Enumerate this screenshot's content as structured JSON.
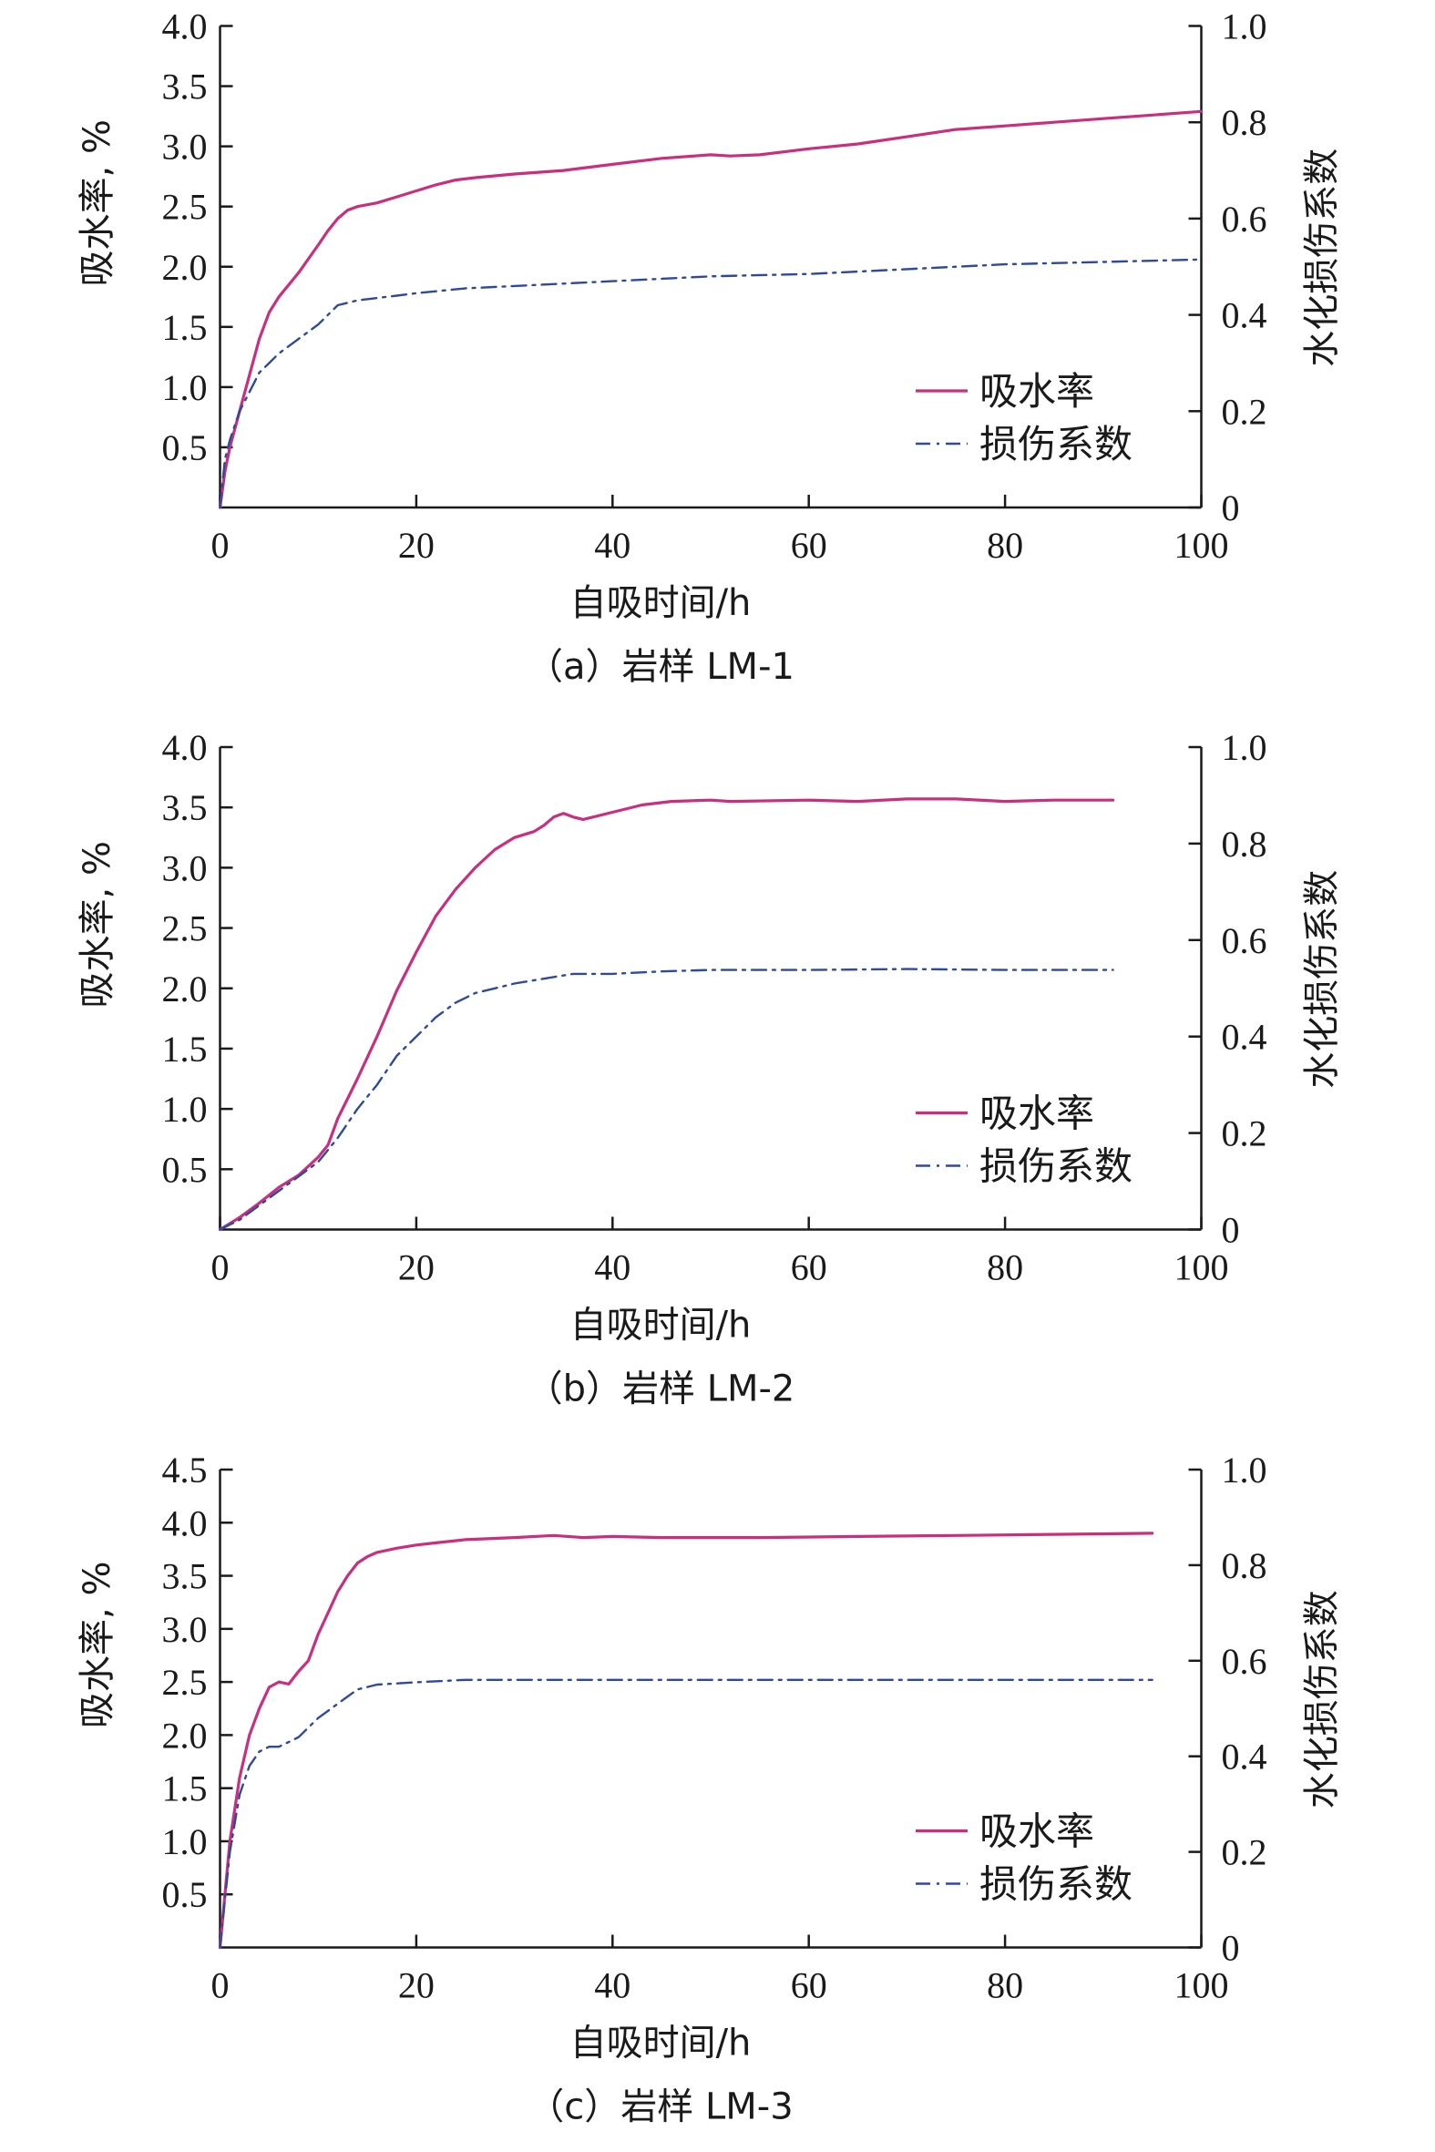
{
  "chart_data": [
    {
      "type": "line",
      "caption": "（a）岩样 LM-1",
      "xlabel": "自吸时间/h",
      "ylabel": "吸水率, %",
      "y2label": "水化损伤系数",
      "xlim": [
        0,
        100
      ],
      "ylim": [
        0,
        4.0
      ],
      "y2lim": [
        0,
        1.0
      ],
      "xticks": [
        "0",
        "20",
        "40",
        "60",
        "80",
        "100"
      ],
      "yticks": [
        "0.5",
        "1.0",
        "1.5",
        "2.0",
        "2.5",
        "3.0",
        "3.5",
        "4.0"
      ],
      "y2ticks": [
        "0",
        "0.2",
        "0.4",
        "0.6",
        "0.8",
        "1.0"
      ],
      "legend_position": "bottom-right",
      "series": [
        {
          "name": "吸水率",
          "axis": "left",
          "color": "#c8307f",
          "style": "solid",
          "points": [
            [
              0,
              0
            ],
            [
              0.5,
              0.3
            ],
            [
              1,
              0.5
            ],
            [
              2,
              0.8
            ],
            [
              3,
              1.1
            ],
            [
              4,
              1.4
            ],
            [
              5,
              1.62
            ],
            [
              6,
              1.75
            ],
            [
              8,
              1.95
            ],
            [
              10,
              2.18
            ],
            [
              11,
              2.3
            ],
            [
              12,
              2.4
            ],
            [
              13,
              2.47
            ],
            [
              14,
              2.5
            ],
            [
              16,
              2.53
            ],
            [
              18,
              2.58
            ],
            [
              20,
              2.63
            ],
            [
              22,
              2.68
            ],
            [
              24,
              2.72
            ],
            [
              26,
              2.74
            ],
            [
              30,
              2.77
            ],
            [
              35,
              2.8
            ],
            [
              40,
              2.85
            ],
            [
              45,
              2.9
            ],
            [
              50,
              2.93
            ],
            [
              52,
              2.92
            ],
            [
              55,
              2.93
            ],
            [
              60,
              2.98
            ],
            [
              65,
              3.02
            ],
            [
              70,
              3.08
            ],
            [
              75,
              3.14
            ],
            [
              80,
              3.17
            ],
            [
              85,
              3.2
            ],
            [
              90,
              3.23
            ],
            [
              95,
              3.26
            ],
            [
              100,
              3.29
            ]
          ]
        },
        {
          "name": "损伤系数",
          "axis": "right",
          "color": "#2f4a9a",
          "style": "dashdot",
          "points": [
            [
              0,
              0
            ],
            [
              0.5,
              0.1
            ],
            [
              1,
              0.14
            ],
            [
              2,
              0.2
            ],
            [
              3,
              0.24
            ],
            [
              4,
              0.28
            ],
            [
              5,
              0.3
            ],
            [
              6,
              0.32
            ],
            [
              8,
              0.35
            ],
            [
              10,
              0.38
            ],
            [
              12,
              0.42
            ],
            [
              14,
              0.43
            ],
            [
              16,
              0.435
            ],
            [
              18,
              0.44
            ],
            [
              20,
              0.445
            ],
            [
              25,
              0.455
            ],
            [
              30,
              0.46
            ],
            [
              40,
              0.47
            ],
            [
              50,
              0.48
            ],
            [
              60,
              0.485
            ],
            [
              70,
              0.495
            ],
            [
              80,
              0.505
            ],
            [
              90,
              0.51
            ],
            [
              100,
              0.515
            ]
          ]
        }
      ]
    },
    {
      "type": "line",
      "caption": "（b）岩样 LM-2",
      "xlabel": "自吸时间/h",
      "ylabel": "吸水率, %",
      "y2label": "水化损伤系数",
      "xlim": [
        0,
        100
      ],
      "ylim": [
        0,
        4.0
      ],
      "y2lim": [
        0,
        1.0
      ],
      "xticks": [
        "0",
        "20",
        "40",
        "60",
        "80",
        "100"
      ],
      "yticks": [
        "0.5",
        "1.0",
        "1.5",
        "2.0",
        "2.5",
        "3.0",
        "3.5",
        "4.0"
      ],
      "y2ticks": [
        "0",
        "0.2",
        "0.4",
        "0.6",
        "0.8",
        "1.0"
      ],
      "legend_position": "bottom-right",
      "series": [
        {
          "name": "吸水率",
          "axis": "left",
          "color": "#c8307f",
          "style": "solid",
          "points": [
            [
              0,
              0
            ],
            [
              2,
              0.1
            ],
            [
              4,
              0.22
            ],
            [
              6,
              0.35
            ],
            [
              8,
              0.45
            ],
            [
              10,
              0.6
            ],
            [
              11,
              0.7
            ],
            [
              12,
              0.92
            ],
            [
              14,
              1.25
            ],
            [
              16,
              1.6
            ],
            [
              18,
              1.98
            ],
            [
              20,
              2.3
            ],
            [
              22,
              2.6
            ],
            [
              24,
              2.82
            ],
            [
              26,
              3.0
            ],
            [
              28,
              3.15
            ],
            [
              30,
              3.25
            ],
            [
              32,
              3.3
            ],
            [
              33,
              3.35
            ],
            [
              34,
              3.42
            ],
            [
              35,
              3.45
            ],
            [
              36,
              3.42
            ],
            [
              37,
              3.4
            ],
            [
              38,
              3.42
            ],
            [
              40,
              3.46
            ],
            [
              43,
              3.52
            ],
            [
              46,
              3.55
            ],
            [
              50,
              3.56
            ],
            [
              52,
              3.55
            ],
            [
              60,
              3.56
            ],
            [
              65,
              3.55
            ],
            [
              70,
              3.57
            ],
            [
              75,
              3.57
            ],
            [
              80,
              3.55
            ],
            [
              85,
              3.56
            ],
            [
              91,
              3.56
            ]
          ]
        },
        {
          "name": "损伤系数",
          "axis": "right",
          "color": "#2f4a9a",
          "style": "dashdot",
          "points": [
            [
              0,
              0
            ],
            [
              2,
              0.02
            ],
            [
              4,
              0.05
            ],
            [
              6,
              0.08
            ],
            [
              8,
              0.11
            ],
            [
              10,
              0.14
            ],
            [
              12,
              0.19
            ],
            [
              14,
              0.25
            ],
            [
              16,
              0.3
            ],
            [
              18,
              0.36
            ],
            [
              20,
              0.4
            ],
            [
              22,
              0.44
            ],
            [
              24,
              0.47
            ],
            [
              26,
              0.49
            ],
            [
              28,
              0.5
            ],
            [
              30,
              0.51
            ],
            [
              33,
              0.52
            ],
            [
              36,
              0.53
            ],
            [
              40,
              0.53
            ],
            [
              45,
              0.535
            ],
            [
              50,
              0.538
            ],
            [
              60,
              0.538
            ],
            [
              70,
              0.54
            ],
            [
              80,
              0.538
            ],
            [
              91,
              0.538
            ]
          ]
        }
      ]
    },
    {
      "type": "line",
      "caption": "（c）岩样 LM-3",
      "xlabel": "自吸时间/h",
      "ylabel": "吸水率, %",
      "y2label": "水化损伤系数",
      "xlim": [
        0,
        100
      ],
      "ylim": [
        0,
        4.5
      ],
      "y2lim": [
        0,
        1.0
      ],
      "xticks": [
        "0",
        "20",
        "40",
        "60",
        "80",
        "100"
      ],
      "yticks": [
        "0.5",
        "1.0",
        "1.5",
        "2.0",
        "2.5",
        "3.0",
        "3.5",
        "4.0",
        "4.5"
      ],
      "y2ticks": [
        "0",
        "0.2",
        "0.4",
        "0.6",
        "0.8",
        "1.0"
      ],
      "legend_position": "bottom-right",
      "series": [
        {
          "name": "吸水率",
          "axis": "left",
          "color": "#c8307f",
          "style": "solid",
          "points": [
            [
              0,
              0
            ],
            [
              0.5,
              0.5
            ],
            [
              1,
              1.0
            ],
            [
              2,
              1.6
            ],
            [
              3,
              2.0
            ],
            [
              4,
              2.25
            ],
            [
              5,
              2.45
            ],
            [
              6,
              2.5
            ],
            [
              7,
              2.48
            ],
            [
              8,
              2.6
            ],
            [
              9,
              2.7
            ],
            [
              10,
              2.95
            ],
            [
              11,
              3.15
            ],
            [
              12,
              3.35
            ],
            [
              13,
              3.5
            ],
            [
              14,
              3.62
            ],
            [
              15,
              3.68
            ],
            [
              16,
              3.72
            ],
            [
              18,
              3.76
            ],
            [
              20,
              3.79
            ],
            [
              22,
              3.81
            ],
            [
              25,
              3.84
            ],
            [
              30,
              3.86
            ],
            [
              34,
              3.88
            ],
            [
              37,
              3.86
            ],
            [
              40,
              3.87
            ],
            [
              45,
              3.86
            ],
            [
              55,
              3.86
            ],
            [
              65,
              3.87
            ],
            [
              75,
              3.88
            ],
            [
              85,
              3.89
            ],
            [
              95,
              3.9
            ]
          ]
        },
        {
          "name": "损伤系数",
          "axis": "right",
          "color": "#2f4a9a",
          "style": "dashdot",
          "points": [
            [
              0,
              0
            ],
            [
              0.5,
              0.1
            ],
            [
              1,
              0.2
            ],
            [
              2,
              0.32
            ],
            [
              3,
              0.38
            ],
            [
              4,
              0.41
            ],
            [
              5,
              0.42
            ],
            [
              6,
              0.42
            ],
            [
              7,
              0.43
            ],
            [
              8,
              0.44
            ],
            [
              9,
              0.46
            ],
            [
              10,
              0.48
            ],
            [
              12,
              0.51
            ],
            [
              14,
              0.54
            ],
            [
              16,
              0.55
            ],
            [
              20,
              0.555
            ],
            [
              25,
              0.56
            ],
            [
              30,
              0.56
            ],
            [
              40,
              0.56
            ],
            [
              50,
              0.56
            ],
            [
              60,
              0.56
            ],
            [
              70,
              0.56
            ],
            [
              80,
              0.56
            ],
            [
              95,
              0.56
            ]
          ]
        }
      ]
    }
  ]
}
